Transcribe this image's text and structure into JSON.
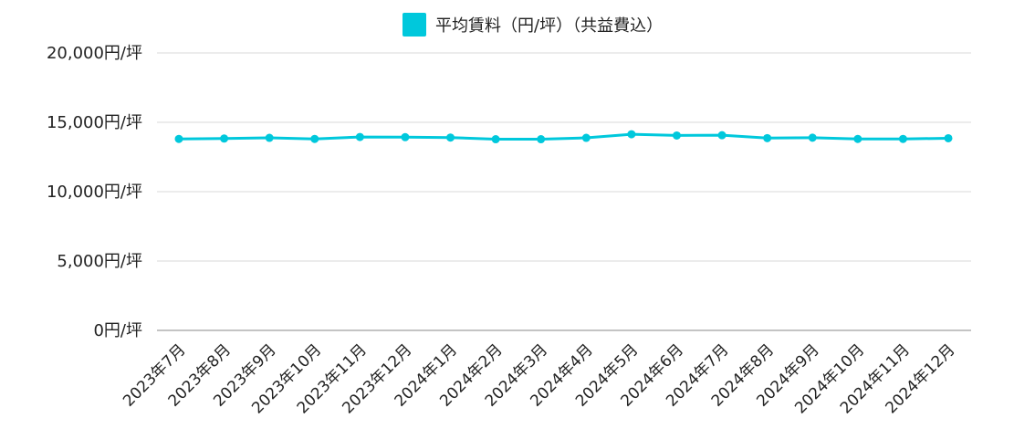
{
  "chart_data": {
    "type": "line",
    "legend": "平均賃料（円/坪）（共益費込）",
    "legend_position": "top-center",
    "grid": true,
    "color": "#00c8dc",
    "categories": [
      "2023年7月",
      "2023年8月",
      "2023年9月",
      "2023年10月",
      "2023年11月",
      "2023年12月",
      "2024年1月",
      "2024年2月",
      "2024年3月",
      "2024年4月",
      "2024年5月",
      "2024年6月",
      "2024年7月",
      "2024年8月",
      "2024年9月",
      "2024年10月",
      "2024年11月",
      "2024年12月"
    ],
    "series": [
      {
        "name": "平均賃料（円/坪）（共益費込）",
        "values": [
          13800,
          13830,
          13880,
          13800,
          13940,
          13930,
          13900,
          13780,
          13780,
          13880,
          14140,
          14050,
          14070,
          13860,
          13890,
          13800,
          13800,
          13850
        ]
      }
    ],
    "ylim": [
      0,
      20000
    ],
    "yticks": [
      0,
      5000,
      10000,
      15000,
      20000
    ],
    "ytick_labels": [
      "0円/坪",
      "5,000円/坪",
      "10,000円/坪",
      "15,000円/坪",
      "20,000円/坪"
    ]
  }
}
